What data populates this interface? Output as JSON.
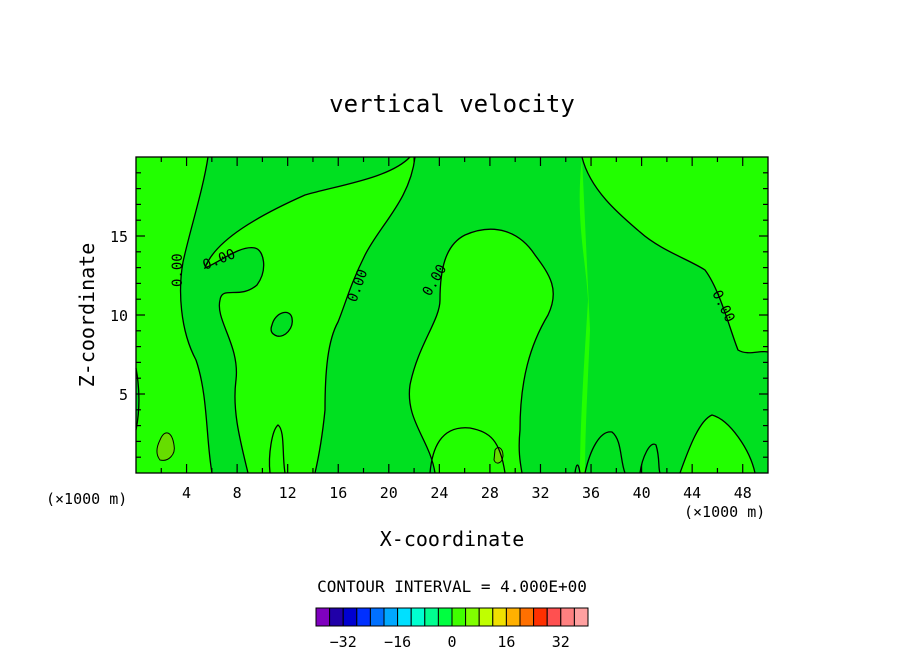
{
  "chart_data": {
    "type": "heatmap",
    "title": "vertical velocity",
    "xlabel": "X-coordinate",
    "ylabel": "Z-coordinate",
    "x_units": "(×1000 m)",
    "x_units_right": "(×1000 m)",
    "xlim": [
      0,
      50
    ],
    "ylim": [
      0,
      20
    ],
    "x_ticks": [
      4,
      8,
      12,
      16,
      20,
      24,
      28,
      32,
      36,
      40,
      44,
      48
    ],
    "y_ticks": [
      5,
      10,
      15
    ],
    "contour_interval_text": "CONTOUR INTERVAL = 4.000E+00",
    "contour_labels": [
      "0.00",
      "0.00",
      "0.00",
      "0.00",
      "0.00"
    ],
    "colorbar": {
      "colors": [
        "#7f00bf",
        "#2000a8",
        "#0000d0",
        "#0030ff",
        "#0070ff",
        "#00a8ff",
        "#00e0ff",
        "#00ffd0",
        "#00ff90",
        "#00ff40",
        "#40ff00",
        "#80ff00",
        "#c0ff00",
        "#f0e000",
        "#ffb000",
        "#ff7000",
        "#ff3000",
        "#ff5050",
        "#ff8080",
        "#ffa0a0"
      ],
      "tick_labels": [
        "−32",
        "−16",
        "0",
        "16",
        "32"
      ],
      "tick_values": [
        -32,
        -16,
        0,
        16,
        32
      ]
    },
    "fill_colors": {
      "positive": "#22ff00",
      "negative": "#00e020",
      "strong_positive": "#66dd00"
    }
  }
}
